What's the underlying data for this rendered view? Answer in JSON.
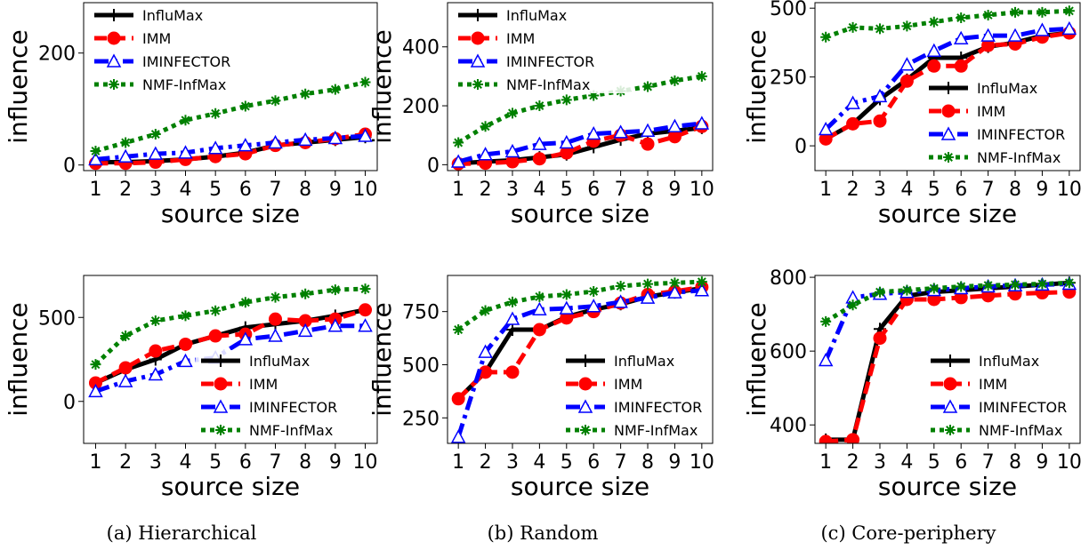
{
  "captions": [
    "(a) Hierarchical",
    "(b) Random",
    "(c) Core-periphery"
  ],
  "series_styles": [
    {
      "name": "InfluMax",
      "color": "#000000",
      "marker": "plus",
      "dash": "solid"
    },
    {
      "name": "IMM",
      "color": "#ff0000",
      "marker": "circle",
      "dash": "dashed"
    },
    {
      "name": "IMINFECTOR",
      "color": "#0000ff",
      "marker": "triangle",
      "dash": "dashdot"
    },
    {
      "name": "NMF-InfMax",
      "color": "#008000",
      "marker": "star",
      "dash": "dotted"
    }
  ],
  "chart_data": [
    {
      "type": "line",
      "xlabel": "source size",
      "ylabel": "influence",
      "x": [
        1,
        2,
        3,
        4,
        5,
        6,
        7,
        8,
        9,
        10
      ],
      "xticks": [
        1,
        2,
        3,
        4,
        5,
        6,
        7,
        8,
        9,
        10
      ],
      "ylim": [
        -10,
        290
      ],
      "yticks": [
        0,
        200
      ],
      "legend": "upper-left",
      "series": [
        {
          "name": "InfluMax",
          "values": [
            5,
            5,
            7,
            10,
            15,
            22,
            35,
            40,
            45,
            50
          ]
        },
        {
          "name": "IMM",
          "values": [
            3,
            3,
            5,
            10,
            15,
            20,
            35,
            40,
            47,
            55
          ]
        },
        {
          "name": "IMINFECTOR",
          "values": [
            10,
            15,
            20,
            22,
            30,
            35,
            40,
            45,
            48,
            52
          ]
        },
        {
          "name": "NMF-InfMax",
          "values": [
            25,
            40,
            55,
            80,
            92,
            105,
            115,
            127,
            135,
            148
          ]
        }
      ]
    },
    {
      "type": "line",
      "xlabel": "source size",
      "ylabel": "influence",
      "x": [
        1,
        2,
        3,
        4,
        5,
        6,
        7,
        8,
        9,
        10
      ],
      "xticks": [
        1,
        2,
        3,
        4,
        5,
        6,
        7,
        8,
        9,
        10
      ],
      "ylim": [
        -20,
        550
      ],
      "yticks": [
        0,
        200,
        400
      ],
      "legend": "upper-left",
      "series": [
        {
          "name": "InfluMax",
          "values": [
            5,
            10,
            15,
            25,
            35,
            60,
            85,
            105,
            115,
            125
          ]
        },
        {
          "name": "IMM",
          "values": [
            3,
            5,
            10,
            20,
            40,
            80,
            100,
            70,
            95,
            130
          ]
        },
        {
          "name": "IMINFECTOR",
          "values": [
            10,
            35,
            45,
            70,
            75,
            105,
            110,
            115,
            130,
            140
          ]
        },
        {
          "name": "NMF-InfMax",
          "values": [
            75,
            130,
            175,
            200,
            220,
            235,
            250,
            265,
            285,
            300
          ]
        }
      ]
    },
    {
      "type": "line",
      "xlabel": "source size",
      "ylabel": "influence",
      "x": [
        1,
        2,
        3,
        4,
        5,
        6,
        7,
        8,
        9,
        10
      ],
      "xticks": [
        1,
        2,
        3,
        4,
        5,
        6,
        7,
        8,
        9,
        10
      ],
      "ylim": [
        -90,
        520
      ],
      "yticks": [
        0,
        250,
        500
      ],
      "legend": "center-right",
      "series": [
        {
          "name": "InfluMax",
          "values": [
            25,
            80,
            170,
            240,
            320,
            320,
            360,
            375,
            400,
            410
          ]
        },
        {
          "name": "IMM",
          "values": [
            25,
            80,
            90,
            235,
            290,
            290,
            365,
            370,
            395,
            410
          ]
        },
        {
          "name": "IMINFECTOR",
          "values": [
            60,
            155,
            180,
            295,
            345,
            390,
            400,
            400,
            420,
            425
          ]
        },
        {
          "name": "NMF-InfMax",
          "values": [
            395,
            430,
            425,
            435,
            450,
            465,
            475,
            485,
            485,
            490
          ]
        }
      ]
    },
    {
      "type": "line",
      "xlabel": "source size",
      "ylabel": "influence",
      "x": [
        1,
        2,
        3,
        4,
        5,
        6,
        7,
        8,
        9,
        10
      ],
      "xticks": [
        1,
        2,
        3,
        4,
        5,
        6,
        7,
        8,
        9,
        10
      ],
      "ylim": [
        -250,
        750
      ],
      "yticks": [
        0,
        500
      ],
      "legend": "lower-right",
      "series": [
        {
          "name": "InfluMax",
          "values": [
            110,
            190,
            250,
            340,
            390,
            440,
            460,
            480,
            510,
            545
          ]
        },
        {
          "name": "IMM",
          "values": [
            110,
            200,
            300,
            340,
            390,
            400,
            490,
            480,
            490,
            545
          ]
        },
        {
          "name": "IMINFECTOR",
          "values": [
            60,
            120,
            160,
            240,
            260,
            370,
            390,
            420,
            450,
            450
          ]
        },
        {
          "name": "NMF-InfMax",
          "values": [
            220,
            390,
            480,
            510,
            540,
            590,
            620,
            640,
            665,
            670
          ]
        }
      ]
    },
    {
      "type": "line",
      "xlabel": "source size",
      "ylabel": "influence",
      "x": [
        1,
        2,
        3,
        4,
        5,
        6,
        7,
        8,
        9,
        10
      ],
      "xticks": [
        1,
        2,
        3,
        4,
        5,
        6,
        7,
        8,
        9,
        10
      ],
      "ylim": [
        130,
        920
      ],
      "yticks": [
        250,
        500,
        750
      ],
      "legend": "lower-right",
      "series": [
        {
          "name": "InfluMax",
          "values": [
            340,
            465,
            665,
            665,
            725,
            760,
            785,
            820,
            840,
            860
          ]
        },
        {
          "name": "IMM",
          "values": [
            340,
            465,
            465,
            665,
            720,
            750,
            790,
            830,
            845,
            865
          ]
        },
        {
          "name": "IMINFECTOR",
          "values": [
            160,
            560,
            715,
            760,
            765,
            775,
            795,
            815,
            840,
            850
          ]
        },
        {
          "name": "NMF-InfMax",
          "values": [
            665,
            755,
            795,
            820,
            830,
            845,
            870,
            880,
            885,
            890
          ]
        }
      ]
    },
    {
      "type": "line",
      "xlabel": "source size",
      "ylabel": "influence",
      "x": [
        1,
        2,
        3,
        4,
        5,
        6,
        7,
        8,
        9,
        10
      ],
      "xticks": [
        1,
        2,
        3,
        4,
        5,
        6,
        7,
        8,
        9,
        10
      ],
      "ylim": [
        350,
        805
      ],
      "yticks": [
        400,
        600,
        800
      ],
      "legend": "lower-right",
      "series": [
        {
          "name": "InfluMax",
          "values": [
            360,
            360,
            660,
            750,
            760,
            765,
            770,
            775,
            780,
            785
          ]
        },
        {
          "name": "IMM",
          "values": [
            355,
            360,
            635,
            740,
            740,
            745,
            750,
            755,
            758,
            760
          ]
        },
        {
          "name": "IMINFECTOR",
          "values": [
            575,
            745,
            755,
            760,
            765,
            770,
            775,
            778,
            780,
            782
          ]
        },
        {
          "name": "NMF-InfMax",
          "values": [
            680,
            725,
            760,
            765,
            770,
            775,
            778,
            780,
            782,
            785
          ]
        }
      ]
    }
  ]
}
